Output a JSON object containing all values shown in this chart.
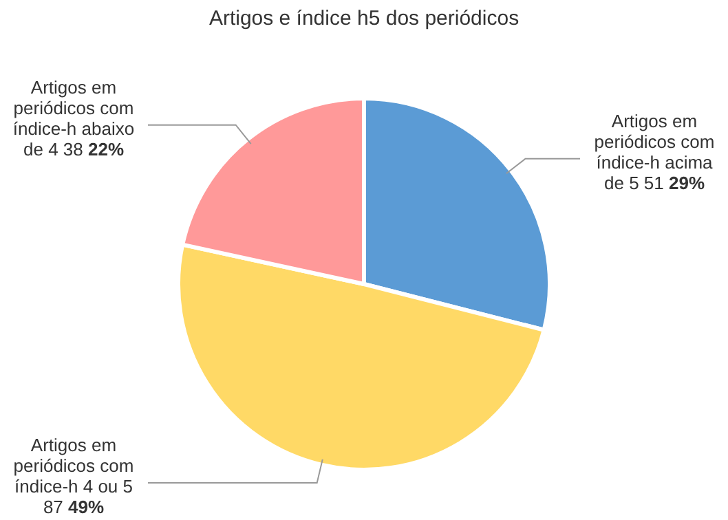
{
  "chart_data": {
    "type": "pie",
    "title": "Artigos e índice h5 dos periódicos",
    "categories": [
      "Artigos em periódicos com índice-h acima de 5",
      "Artigos em periódicos com índice-h 4 ou 5",
      "Artigos em periódicos com índice-h abaixo de 4"
    ],
    "values": [
      51,
      87,
      38
    ],
    "colors": [
      "#5b9bd5",
      "#ffd966",
      "#ff9999"
    ],
    "value_labels": [
      "51 29%",
      "87 49%",
      "38 22%"
    ],
    "legend": false
  }
}
